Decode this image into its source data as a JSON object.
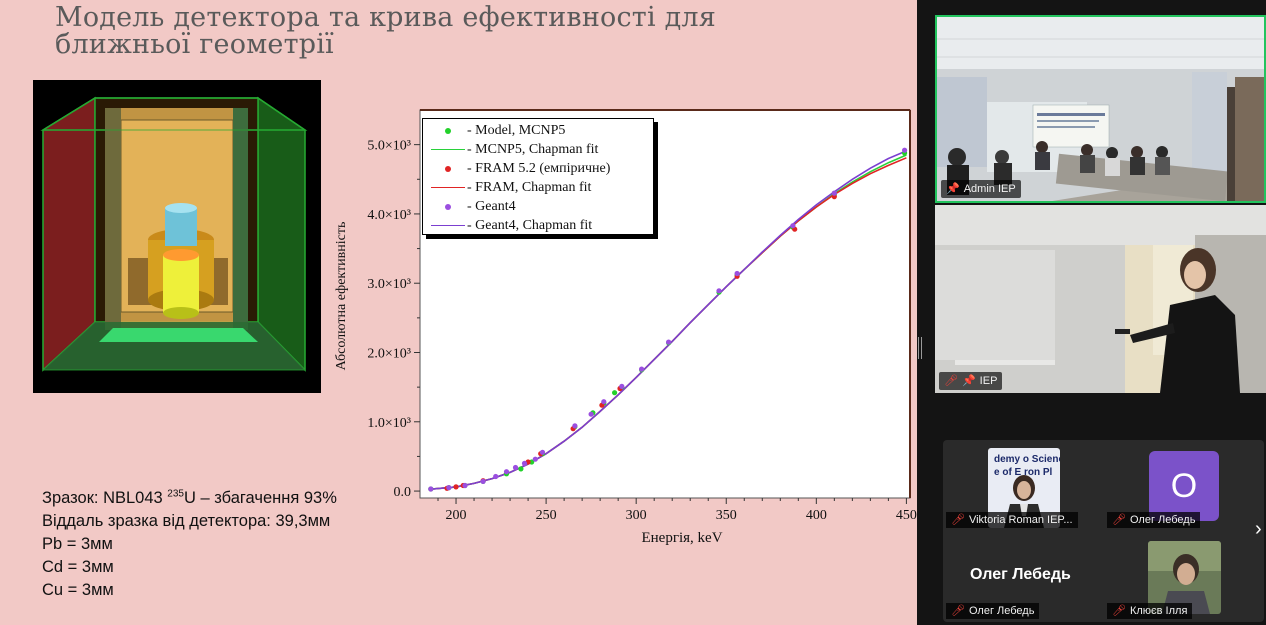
{
  "slide": {
    "title_line1": "Модель детектора та крива ефективності для",
    "title_line2": "ближньої геометрії",
    "sample_info": {
      "line1_prefix": "Зразок: NBL043 ",
      "line1_sup": "235",
      "line1_suffix": "U – збагачення 93%",
      "line2": "Віддаль зразка від детектора: 39,3мм",
      "line3": "Pb = 3мм",
      "line4": "Cd = 3мм",
      "line5": "Cu = 3мм"
    }
  },
  "legend": [
    {
      "text": "- Model, MCNP5",
      "kind": "dot",
      "color": "#22d12a"
    },
    {
      "text": "- MCNP5, Chapman fit",
      "kind": "line",
      "color": "#28d13a"
    },
    {
      "text": "- FRAM 5.2 (емпіричне)",
      "kind": "dot",
      "color": "#e02424"
    },
    {
      "text": "- FRAM, Chapman fit",
      "kind": "line",
      "color": "#e02424"
    },
    {
      "text": "- Geant4",
      "kind": "dot",
      "color": "#9b4fe0"
    },
    {
      "text": "- Geant4, Chapman fit",
      "kind": "line",
      "color": "#7b3fd0"
    }
  ],
  "chart_data": {
    "type": "scatter",
    "title": "",
    "xlabel": "Енергія, keV",
    "ylabel": "Абсолютна ефективність",
    "xlim": [
      180,
      452
    ],
    "ylim": [
      -100,
      5500
    ],
    "x_ticks": [
      200,
      250,
      300,
      350,
      400,
      450
    ],
    "y_ticks": [
      {
        "value": 0,
        "label": "0.0"
      },
      {
        "value": 1000,
        "label": "1.0×10³"
      },
      {
        "value": 2000,
        "label": "2.0×10³"
      },
      {
        "value": 3000,
        "label": "3.0×10³"
      },
      {
        "value": 4000,
        "label": "4.0×10³"
      },
      {
        "value": 5000,
        "label": "5.0×10³"
      }
    ],
    "grid": false,
    "legend_position": "top-left",
    "series": [
      {
        "name": "- Model, MCNP5",
        "kind": "points",
        "color": "#22d12a",
        "x": [
          186,
          196,
          205,
          215,
          228,
          236,
          242,
          248,
          266,
          276,
          282,
          288,
          292,
          303,
          318,
          346,
          356,
          387,
          410,
          449
        ],
        "y": [
          30,
          50,
          80,
          140,
          250,
          320,
          420,
          540,
          930,
          1130,
          1270,
          1420,
          1500,
          1750,
          2140,
          2870,
          3120,
          3810,
          4280,
          4880
        ]
      },
      {
        "name": "- MCNP5, Chapman fit",
        "kind": "line",
        "color": "#28d13a",
        "x": [
          185,
          200,
          210,
          220,
          230,
          240,
          250,
          260,
          270,
          280,
          290,
          300,
          310,
          320,
          330,
          340,
          350,
          360,
          370,
          380,
          390,
          400,
          410,
          420,
          430,
          440,
          450
        ],
        "y": [
          25,
          60,
          110,
          180,
          270,
          390,
          540,
          720,
          920,
          1150,
          1390,
          1640,
          1900,
          2160,
          2430,
          2690,
          2950,
          3200,
          3440,
          3680,
          3900,
          4100,
          4290,
          4460,
          4610,
          4740,
          4850
        ]
      },
      {
        "name": "- FRAM 5.2 (емпіричне)",
        "kind": "points",
        "color": "#e02424",
        "x": [
          195,
          200,
          204,
          215,
          240,
          247,
          265,
          281,
          291,
          356,
          388,
          410
        ],
        "y": [
          40,
          60,
          80,
          150,
          420,
          540,
          900,
          1240,
          1480,
          3100,
          3780,
          4250
        ]
      },
      {
        "name": "- FRAM, Chapman fit",
        "kind": "line",
        "color": "#e02424",
        "x": [
          185,
          200,
          210,
          220,
          230,
          240,
          250,
          260,
          270,
          280,
          290,
          300,
          310,
          320,
          330,
          340,
          350,
          360,
          370,
          380,
          390,
          400,
          410,
          420,
          430,
          440,
          450
        ],
        "y": [
          25,
          60,
          110,
          180,
          270,
          390,
          540,
          720,
          920,
          1150,
          1390,
          1640,
          1900,
          2160,
          2430,
          2690,
          2950,
          3200,
          3440,
          3680,
          3900,
          4100,
          4280,
          4440,
          4580,
          4700,
          4810
        ]
      },
      {
        "name": "- Geant4",
        "kind": "points",
        "color": "#9b4fe0",
        "x": [
          186,
          196,
          205,
          215,
          222,
          228,
          233,
          238,
          244,
          248,
          266,
          275,
          282,
          292,
          303,
          318,
          346,
          356,
          387,
          410,
          449
        ],
        "y": [
          30,
          50,
          80,
          140,
          210,
          280,
          340,
          400,
          460,
          560,
          940,
          1110,
          1290,
          1510,
          1760,
          2150,
          2890,
          3140,
          3830,
          4300,
          4920
        ]
      },
      {
        "name": "- Geant4, Chapman fit",
        "kind": "line",
        "color": "#7b3fd0",
        "x": [
          185,
          200,
          210,
          220,
          230,
          240,
          250,
          260,
          270,
          280,
          290,
          300,
          310,
          320,
          330,
          340,
          350,
          360,
          370,
          380,
          390,
          400,
          410,
          420,
          430,
          440,
          450
        ],
        "y": [
          25,
          60,
          110,
          180,
          270,
          390,
          540,
          720,
          920,
          1150,
          1390,
          1640,
          1900,
          2160,
          2430,
          2690,
          2950,
          3200,
          3450,
          3690,
          3920,
          4130,
          4320,
          4500,
          4660,
          4800,
          4910
        ]
      }
    ]
  },
  "zoom": {
    "tiles": [
      {
        "name": "Admin IEP",
        "muted": false,
        "pinned": true
      },
      {
        "name": "IEP",
        "muted": true,
        "pinned": true
      }
    ],
    "gallery": [
      {
        "name": "Viktoria Roman IEP...",
        "muted": true
      },
      {
        "name": "Олег Лебедь",
        "muted": true
      },
      {
        "name": "Олег Лебедь",
        "muted": true
      },
      {
        "name": "Клюєв Ілля",
        "muted": true
      }
    ],
    "avatar_letter": "O",
    "name_tile_text": "Олег Лебедь",
    "next_icon": "chevron-right-icon",
    "pin_icon": "pin-icon",
    "mic_icon": "mic-off-icon",
    "active_border_color": "#22c45e"
  }
}
